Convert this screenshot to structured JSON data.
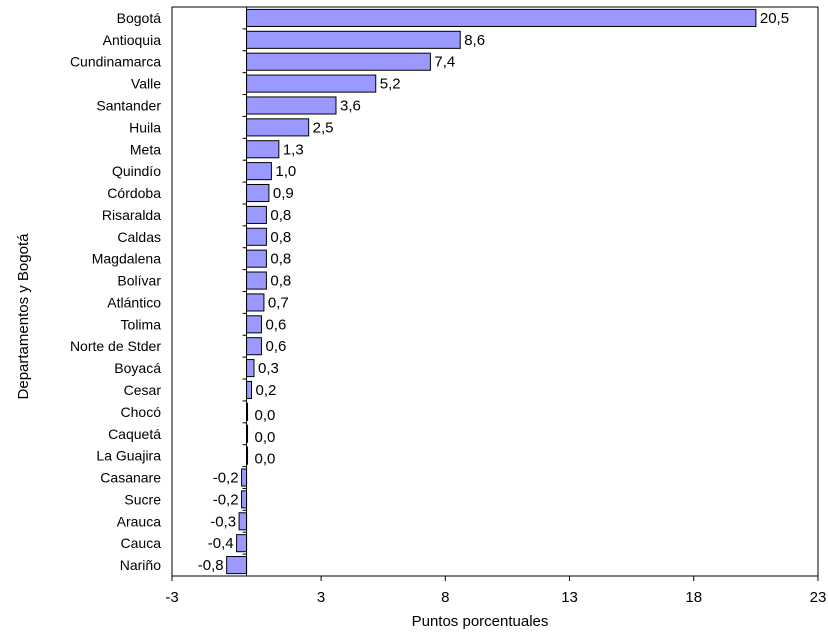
{
  "chart_data": {
    "type": "bar",
    "orientation": "horizontal",
    "title": "",
    "xlabel": "Puntos porcentuales",
    "ylabel": "Departamentos y Bogotá",
    "xlim": [
      -3,
      23
    ],
    "xticks": [
      "-3",
      "3",
      "8",
      "13",
      "18",
      "23"
    ],
    "grid": false,
    "legend": "none",
    "bar_color": "#9999FF",
    "categories": [
      "Bogotá",
      "Antioquia",
      "Cundinamarca",
      "Valle",
      "Santander",
      "Huila",
      "Meta",
      "Quindío",
      "Córdoba",
      "Risaralda",
      "Caldas",
      "Magdalena",
      "Bolívar",
      "Atlántico",
      "Tolima",
      "Norte de Stder",
      "Boyacá",
      "Cesar",
      "Chocó",
      "Caquetá",
      "La Guajira",
      "Casanare",
      "Sucre",
      "Arauca",
      "Cauca",
      "Nariño"
    ],
    "values": [
      20.5,
      8.6,
      7.4,
      5.2,
      3.6,
      2.5,
      1.3,
      1.0,
      0.9,
      0.8,
      0.8,
      0.8,
      0.8,
      0.7,
      0.6,
      0.6,
      0.3,
      0.2,
      0.0,
      0.0,
      0.0,
      -0.2,
      -0.2,
      -0.3,
      -0.4,
      -0.8
    ],
    "value_labels": [
      "20,5",
      "8,6",
      "7,4",
      "5,2",
      "3,6",
      "2,5",
      "1,3",
      "1,0",
      "0,9",
      "0,8",
      "0,8",
      "0,8",
      "0,8",
      "0,7",
      "0,6",
      "0,6",
      "0,3",
      "0,2",
      "0,0",
      "0,0",
      "0,0",
      "-0,2",
      "-0,2",
      "-0,3",
      "-0,4",
      "-0,8"
    ]
  }
}
